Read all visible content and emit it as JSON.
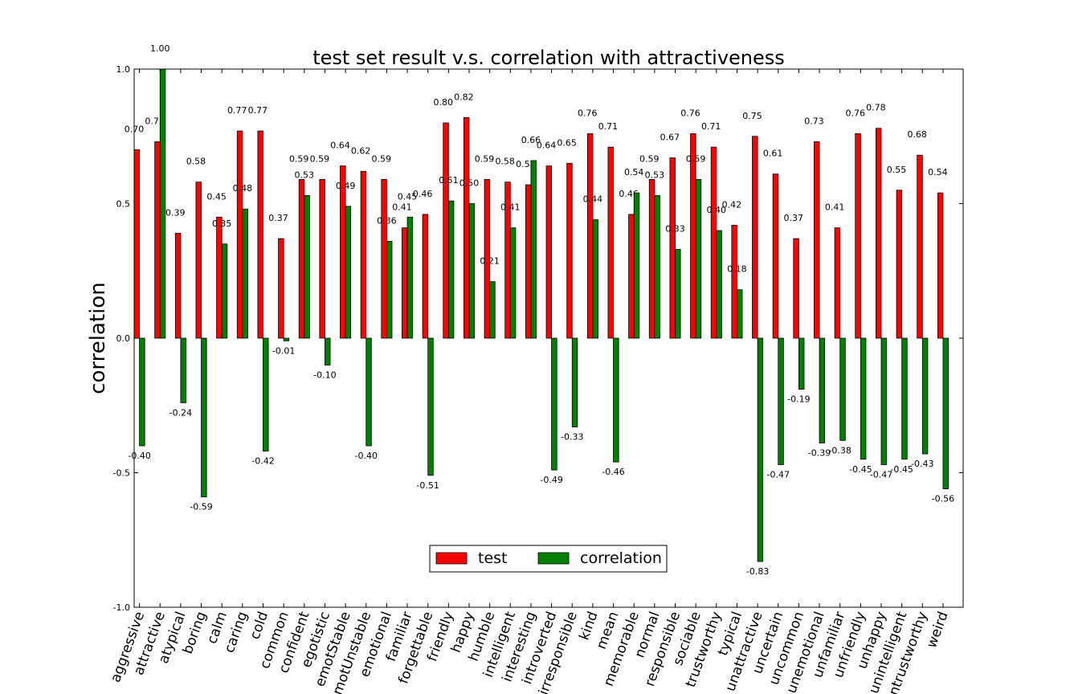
{
  "chart_data": {
    "type": "bar",
    "title": "test set result v.s. correlation with attractiveness",
    "xlabel": "",
    "ylabel": "correlation",
    "ylim": [
      -1.0,
      1.0
    ],
    "yticks": [
      "-1.0",
      "-0.5",
      "0.0",
      "0.5",
      "1.0"
    ],
    "legend_position": "lower center",
    "categories": [
      "aggressive",
      "attractive",
      "atypical",
      "boring",
      "calm",
      "caring",
      "cold",
      "common",
      "confident",
      "egotistic",
      "emotStable",
      "emotUnstable",
      "emotional",
      "familiar",
      "forgettable",
      "friendly",
      "happy",
      "humble",
      "intelligent",
      "interesting",
      "introverted",
      "irresponsible",
      "kind",
      "mean",
      "memorable",
      "normal",
      "responsible",
      "sociable",
      "trustworthy",
      "typical",
      "unattractive",
      "uncertain",
      "uncommon",
      "unemotional",
      "unfamiliar",
      "unfriendly",
      "unhappy",
      "unintelligent",
      "untrustworthy",
      "weird"
    ],
    "series": [
      {
        "name": "test",
        "color": "#ff0000",
        "values": [
          0.7,
          0.73,
          0.39,
          0.58,
          0.45,
          0.77,
          0.77,
          0.37,
          0.59,
          0.59,
          0.64,
          0.62,
          0.59,
          0.41,
          0.46,
          0.8,
          0.82,
          0.59,
          0.58,
          0.57,
          0.64,
          0.65,
          0.76,
          0.71,
          0.46,
          0.59,
          0.67,
          0.76,
          0.71,
          0.42,
          0.75,
          0.61,
          0.37,
          0.73,
          0.41,
          0.76,
          0.78,
          0.55,
          0.68,
          0.54
        ]
      },
      {
        "name": "correlation",
        "color": "#008000",
        "values": [
          -0.4,
          1.0,
          -0.24,
          -0.59,
          0.35,
          0.48,
          -0.42,
          -0.01,
          0.53,
          -0.1,
          0.49,
          -0.4,
          0.36,
          0.45,
          -0.51,
          0.51,
          0.5,
          0.21,
          0.41,
          0.66,
          -0.49,
          -0.33,
          0.44,
          -0.46,
          0.54,
          0.53,
          0.33,
          0.59,
          0.4,
          0.18,
          -0.83,
          -0.47,
          -0.19,
          -0.39,
          -0.38,
          -0.45,
          -0.47,
          -0.45,
          -0.43,
          -0.56
        ]
      }
    ]
  }
}
